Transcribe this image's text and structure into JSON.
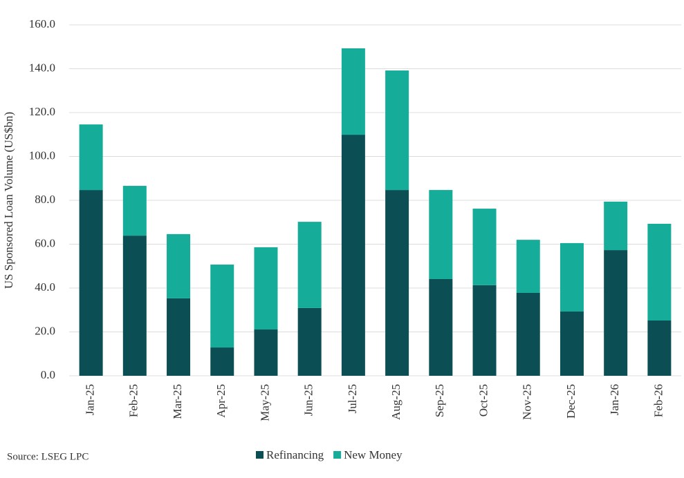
{
  "chart_data": {
    "type": "stacked_bar",
    "y_label": "US Sponsored Loan Volume (US$bn)",
    "source": "Source: LSEG LPC",
    "categories": [
      "Jan-25",
      "Feb-25",
      "Mar-25",
      "Apr-25",
      "May-25",
      "Jun-25",
      "Jul-25",
      "Aug-25",
      "Sep-25",
      "Oct-25",
      "Nov-25",
      "Dec-25",
      "Jan-26",
      "Feb-26"
    ],
    "series": [
      {
        "name": "Refinancing",
        "color": "#0b4f55",
        "values": [
          84.7,
          63.9,
          35.3,
          12.9,
          21.1,
          30.9,
          109.9,
          84.7,
          44.1,
          41.3,
          37.8,
          29.3,
          57.3,
          25.2
        ]
      },
      {
        "name": "New Money",
        "color": "#15ad9a",
        "values": [
          29.9,
          22.7,
          29.3,
          37.8,
          37.5,
          39.3,
          39.4,
          54.5,
          40.6,
          34.9,
          24.2,
          31.2,
          22.1,
          44.1
        ]
      }
    ],
    "ylim": [
      0,
      160
    ],
    "yticks": [
      {
        "value": 0,
        "label": "0.0"
      },
      {
        "value": 20,
        "label": "20.0"
      },
      {
        "value": 40,
        "label": "40.0"
      },
      {
        "value": 60,
        "label": "60.0"
      },
      {
        "value": 80,
        "label": "80.0"
      },
      {
        "value": 100,
        "label": "100.0"
      },
      {
        "value": 120,
        "label": "120.0"
      },
      {
        "value": 140,
        "label": "140.0"
      },
      {
        "value": 160,
        "label": "160.0"
      }
    ],
    "grid": true,
    "legend": "bottom"
  }
}
